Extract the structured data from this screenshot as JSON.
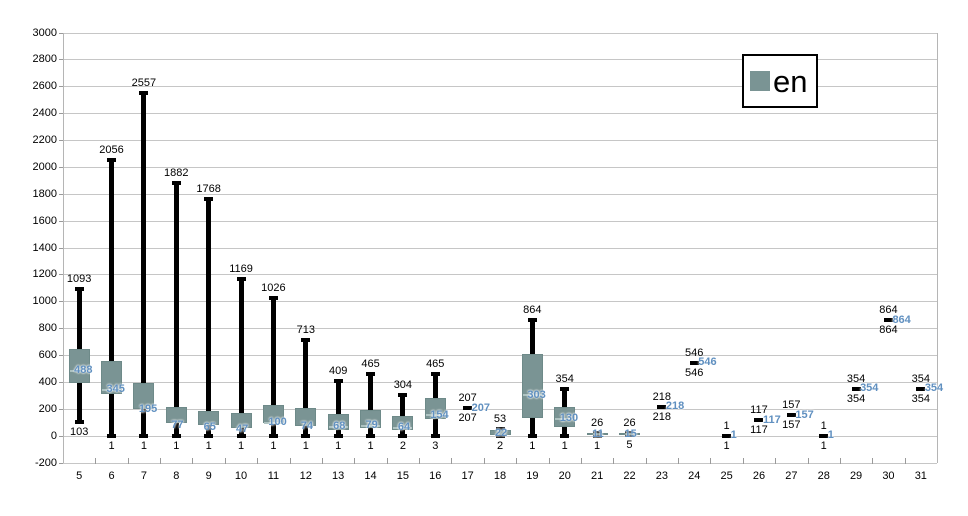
{
  "legend": {
    "label": "en"
  },
  "colors": {
    "candle_fill": "#7a9494",
    "candle_border": "#6e8a89",
    "whisker": "#000000",
    "value_label": "#6090c0",
    "grid": "#c6c6c6",
    "axis": "#b5b5b5",
    "text": "#000000",
    "background": "#ffffff",
    "legend_border": "#000000"
  },
  "chart_data": {
    "type": "boxplot",
    "series_name": "en",
    "title": "",
    "xlabel": "",
    "ylabel": "",
    "ylim": [
      -200,
      3000
    ],
    "y_tick_step": 200,
    "grid": true,
    "legend_position": "inside-top-right",
    "y_tick_labels": [
      "3000",
      "2800",
      "2600",
      "2400",
      "2200",
      "2000",
      "1800",
      "1600",
      "1400",
      "1200",
      "1000",
      "800",
      "600",
      "400",
      "200",
      "0",
      "-200"
    ],
    "categories": [
      "5",
      "6",
      "7",
      "8",
      "9",
      "10",
      "11",
      "12",
      "13",
      "14",
      "15",
      "16",
      "17",
      "18",
      "19",
      "20",
      "21",
      "22",
      "23",
      "24",
      "25",
      "26",
      "27",
      "28",
      "29",
      "30",
      "31"
    ],
    "points": [
      {
        "cat": "5",
        "min": 103,
        "box_low": 395,
        "value": 488,
        "box_high": 650,
        "max": 1093
      },
      {
        "cat": "6",
        "min": 1,
        "box_low": 310,
        "value": 345,
        "box_high": 560,
        "max": 2056
      },
      {
        "cat": "7",
        "min": 1,
        "box_low": 200,
        "value": 195,
        "box_high": 395,
        "max": 2557
      },
      {
        "cat": "8",
        "min": 1,
        "box_low": 95,
        "value": 77,
        "box_high": 215,
        "max": 1882
      },
      {
        "cat": "9",
        "min": 1,
        "box_low": 85,
        "value": 65,
        "box_high": 185,
        "max": 1768
      },
      {
        "cat": "10",
        "min": 1,
        "box_low": 60,
        "value": 47,
        "box_high": 170,
        "max": 1169
      },
      {
        "cat": "11",
        "min": 1,
        "box_low": 98,
        "value": 100,
        "box_high": 230,
        "max": 1026
      },
      {
        "cat": "12",
        "min": 1,
        "box_low": 75,
        "value": 74,
        "box_high": 210,
        "max": 713
      },
      {
        "cat": "13",
        "min": 1,
        "box_low": 45,
        "value": 68,
        "box_high": 165,
        "max": 409
      },
      {
        "cat": "14",
        "min": 1,
        "box_low": 60,
        "value": 79,
        "box_high": 195,
        "max": 465
      },
      {
        "cat": "15",
        "min": 2,
        "box_low": 45,
        "value": 64,
        "box_high": 150,
        "max": 304
      },
      {
        "cat": "16",
        "min": 3,
        "box_low": 127,
        "value": 154,
        "box_high": 285,
        "max": 465
      },
      {
        "cat": "17",
        "min": 207,
        "box_low": 207,
        "value": 207,
        "box_high": 207,
        "max": 207
      },
      {
        "cat": "18",
        "min": 2,
        "box_low": 5,
        "value": 22,
        "box_high": 45,
        "max": 53
      },
      {
        "cat": "19",
        "min": 1,
        "box_low": 135,
        "value": 303,
        "box_high": 610,
        "max": 864
      },
      {
        "cat": "20",
        "min": 1,
        "box_low": 70,
        "value": 130,
        "box_high": 220,
        "max": 354
      },
      {
        "cat": "21",
        "min": 1,
        "box_low": 5,
        "value": 11,
        "box_high": 20,
        "max": 26
      },
      {
        "cat": "22",
        "min": 5,
        "box_low": 10,
        "value": 15,
        "box_high": 22,
        "max": 26
      },
      {
        "cat": "23",
        "min": 218,
        "box_low": 218,
        "value": 218,
        "box_high": 218,
        "max": 218
      },
      {
        "cat": "24",
        "min": 546,
        "box_low": 546,
        "value": 546,
        "box_high": 546,
        "max": 546
      },
      {
        "cat": "25",
        "min": 1,
        "box_low": 1,
        "value": 1,
        "box_high": 1,
        "max": 1
      },
      {
        "cat": "26",
        "min": 117,
        "box_low": 117,
        "value": 117,
        "box_high": 117,
        "max": 117
      },
      {
        "cat": "27",
        "min": 157,
        "box_low": 157,
        "value": 157,
        "box_high": 157,
        "max": 157
      },
      {
        "cat": "28",
        "min": 1,
        "box_low": 1,
        "value": 1,
        "box_high": 1,
        "max": 1
      },
      {
        "cat": "29",
        "min": 354,
        "box_low": 354,
        "value": 354,
        "box_high": 354,
        "max": 354
      },
      {
        "cat": "30",
        "min": 864,
        "box_low": 864,
        "value": 864,
        "box_high": 864,
        "max": 864
      },
      {
        "cat": "31",
        "min": 354,
        "box_low": 354,
        "value": 354,
        "box_high": 354,
        "max": 354
      }
    ]
  }
}
